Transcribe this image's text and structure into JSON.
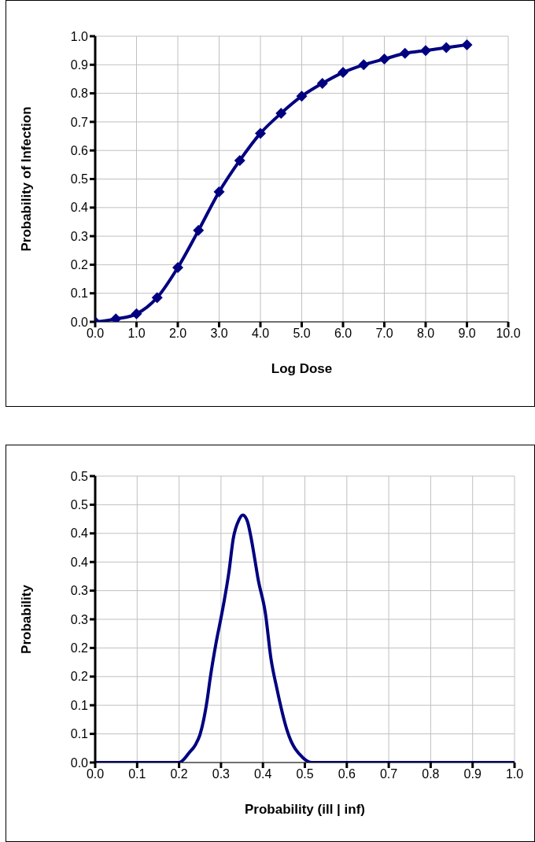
{
  "chart_data": [
    {
      "type": "line",
      "xlabel": "Log Dose",
      "ylabel": "Probability of Infection",
      "x": [
        0,
        0.5,
        1,
        1.5,
        2,
        2.5,
        3,
        3.5,
        4,
        4.5,
        5,
        5.5,
        6,
        6.5,
        7,
        7.5,
        8,
        8.5,
        9
      ],
      "series": [
        {
          "color": "#000080",
          "values": [
            0,
            0.01,
            0.028,
            0.085,
            0.19,
            0.32,
            0.455,
            0.565,
            0.66,
            0.73,
            0.79,
            0.835,
            0.873,
            0.9,
            0.92,
            0.94,
            0.95,
            0.96,
            0.97
          ]
        }
      ],
      "xlim": [
        0,
        10
      ],
      "xticks": [
        {
          "value": 0,
          "label": "0.0"
        },
        {
          "value": 1,
          "label": "1.0"
        },
        {
          "value": 2,
          "label": "2.0"
        },
        {
          "value": 3,
          "label": "3.0"
        },
        {
          "value": 4,
          "label": "4.0"
        },
        {
          "value": 5,
          "label": "5.0"
        },
        {
          "value": 6,
          "label": "6.0"
        },
        {
          "value": 7,
          "label": "7.0"
        },
        {
          "value": 8,
          "label": "8.0"
        },
        {
          "value": 9,
          "label": "9.0"
        },
        {
          "value": 10,
          "label": "10.0"
        }
      ],
      "ylim": [
        0,
        1
      ],
      "yticks": [
        {
          "value": 0,
          "label": "0.0"
        },
        0.1,
        0.2,
        0.3,
        0.4,
        0.5,
        0.6,
        0.7,
        0.8,
        0.9,
        {
          "value": 1,
          "label": "1.0"
        }
      ],
      "grid": true,
      "marker": "diamond",
      "line_style": "solid",
      "legend": false
    },
    {
      "type": "line",
      "xlabel": "Probability (ill | inf)",
      "ylabel": "Probability",
      "x": [
        0,
        0.1,
        0.2,
        0.224,
        0.239,
        0.25,
        0.267,
        0.274,
        0.288,
        0.302,
        0.319,
        0.329,
        0.343,
        0.352,
        0.363,
        0.371,
        0.381,
        0.388,
        0.406,
        0.419,
        0.433,
        0.458,
        0.496,
        0.517,
        0.6,
        0.7,
        0.8,
        0.9,
        1
      ],
      "series": [
        {
          "color": "#000080",
          "values": [
            0,
            0,
            0,
            0.017,
            0.031,
            0.049,
            0.109,
            0.146,
            0.208,
            0.26,
            0.333,
            0.39,
            0.424,
            0.432,
            0.421,
            0.395,
            0.353,
            0.322,
            0.26,
            0.182,
            0.13,
            0.055,
            0.008,
            0,
            0,
            0,
            0,
            0,
            0
          ]
        }
      ],
      "xlim": [
        0,
        1
      ],
      "xticks": [
        {
          "value": 0,
          "label": "0.0"
        },
        0.1,
        0.2,
        0.3,
        0.4,
        0.5,
        0.6,
        0.7,
        0.8,
        0.9,
        {
          "value": 1,
          "label": "1.0"
        }
      ],
      "ylim": [
        0,
        0.5
      ],
      "yticks": [
        {
          "value": 0,
          "label": "0.0"
        },
        {
          "value": 0.05,
          "label": "0.1"
        },
        {
          "value": 0.1,
          "label": "0.1"
        },
        {
          "value": 0.15,
          "label": "0.2"
        },
        {
          "value": 0.2,
          "label": "0.2"
        },
        {
          "value": 0.25,
          "label": "0.3"
        },
        {
          "value": 0.3,
          "label": "0.3"
        },
        {
          "value": 0.35,
          "label": "0.4"
        },
        {
          "value": 0.4,
          "label": "0.4"
        },
        {
          "value": 0.45,
          "label": "0.5"
        },
        0.5
      ],
      "grid": true,
      "marker": "none",
      "line_style": "solid",
      "legend": false
    }
  ]
}
